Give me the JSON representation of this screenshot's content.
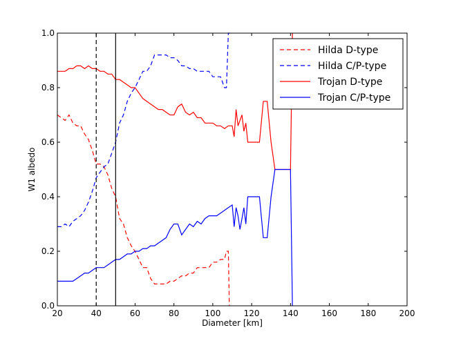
{
  "chart_data": {
    "type": "line",
    "title": "",
    "xlabel": "Diameter [km]",
    "ylabel": "W1 albedo",
    "xlim": [
      20,
      200
    ],
    "ylim": [
      0.0,
      1.0
    ],
    "xticks": [
      "20",
      "40",
      "60",
      "80",
      "100",
      "120",
      "140",
      "160",
      "180",
      "200"
    ],
    "yticks": [
      "0.0",
      "0.2",
      "0.4",
      "0.6",
      "0.8",
      "1.0"
    ],
    "grid": false,
    "legend_position": "upper right",
    "vertical_lines": [
      {
        "x": 40,
        "style": "dashed",
        "color": "#000000"
      },
      {
        "x": 50,
        "style": "solid",
        "color": "#000000"
      }
    ],
    "series": [
      {
        "name": "Hilda D-type",
        "color": "#ff0000",
        "style": "dashed",
        "x": [
          20,
          22,
          24,
          26,
          28,
          30,
          32,
          34,
          36,
          38,
          40,
          42,
          44,
          46,
          48,
          50,
          52,
          54,
          56,
          58,
          60,
          62,
          64,
          66,
          68,
          70,
          72,
          74,
          76,
          78,
          80,
          82,
          84,
          86,
          88,
          90,
          92,
          94,
          96,
          98,
          100,
          102,
          104,
          106,
          107,
          108,
          108.5
        ],
        "values": [
          0.7,
          0.69,
          0.68,
          0.7,
          0.67,
          0.66,
          0.66,
          0.63,
          0.61,
          0.57,
          0.52,
          0.52,
          0.51,
          0.48,
          0.43,
          0.4,
          0.32,
          0.3,
          0.25,
          0.22,
          0.2,
          0.17,
          0.14,
          0.14,
          0.1,
          0.08,
          0.08,
          0.08,
          0.08,
          0.09,
          0.09,
          0.1,
          0.11,
          0.11,
          0.12,
          0.12,
          0.14,
          0.14,
          0.14,
          0.14,
          0.16,
          0.16,
          0.17,
          0.17,
          0.2,
          0.2,
          0.0
        ]
      },
      {
        "name": "Hilda C/P-type",
        "color": "#0000ff",
        "style": "dashed",
        "x": [
          20,
          22,
          24,
          26,
          28,
          30,
          32,
          34,
          36,
          38,
          40,
          42,
          44,
          46,
          48,
          50,
          52,
          54,
          56,
          58,
          60,
          62,
          64,
          66,
          68,
          70,
          72,
          74,
          76,
          78,
          80,
          82,
          84,
          86,
          88,
          90,
          92,
          94,
          96,
          98,
          100,
          102,
          104,
          106,
          107,
          108,
          109
        ],
        "values": [
          0.29,
          0.29,
          0.3,
          0.29,
          0.31,
          0.32,
          0.33,
          0.35,
          0.38,
          0.42,
          0.47,
          0.49,
          0.51,
          0.52,
          0.56,
          0.6,
          0.67,
          0.7,
          0.75,
          0.78,
          0.8,
          0.83,
          0.86,
          0.86,
          0.88,
          0.92,
          0.92,
          0.92,
          0.92,
          0.91,
          0.91,
          0.9,
          0.88,
          0.88,
          0.87,
          0.87,
          0.86,
          0.86,
          0.86,
          0.86,
          0.84,
          0.84,
          0.84,
          0.8,
          0.8,
          1.0,
          1.0
        ]
      },
      {
        "name": "Trojan D-type",
        "color": "#ff0000",
        "style": "solid",
        "x": [
          20,
          22,
          24,
          26,
          28,
          30,
          32,
          34,
          36,
          38,
          40,
          42,
          44,
          46,
          48,
          50,
          52,
          54,
          56,
          58,
          60,
          62,
          64,
          66,
          68,
          70,
          72,
          74,
          76,
          78,
          80,
          82,
          84,
          86,
          88,
          90,
          92,
          94,
          96,
          98,
          100,
          102,
          104,
          106,
          108,
          110,
          111,
          112,
          113,
          114,
          115,
          116,
          117,
          118,
          120,
          122,
          124,
          126,
          128,
          130,
          132,
          134,
          136,
          138,
          140,
          141
        ],
        "values": [
          0.86,
          0.86,
          0.86,
          0.87,
          0.87,
          0.88,
          0.88,
          0.87,
          0.88,
          0.87,
          0.87,
          0.86,
          0.86,
          0.85,
          0.85,
          0.83,
          0.83,
          0.82,
          0.81,
          0.8,
          0.8,
          0.78,
          0.76,
          0.75,
          0.74,
          0.73,
          0.72,
          0.72,
          0.71,
          0.7,
          0.7,
          0.73,
          0.74,
          0.71,
          0.7,
          0.71,
          0.69,
          0.69,
          0.67,
          0.67,
          0.67,
          0.66,
          0.66,
          0.65,
          0.66,
          0.66,
          0.62,
          0.72,
          0.66,
          0.68,
          0.7,
          0.64,
          0.67,
          0.6,
          0.6,
          0.6,
          0.6,
          0.75,
          0.75,
          0.6,
          0.5,
          0.5,
          0.5,
          0.5,
          0.5,
          1.0
        ]
      },
      {
        "name": "Trojan C/P-type",
        "color": "#0000ff",
        "style": "solid",
        "x": [
          20,
          22,
          24,
          26,
          28,
          30,
          32,
          34,
          36,
          38,
          40,
          42,
          44,
          46,
          48,
          50,
          52,
          54,
          56,
          58,
          60,
          62,
          64,
          66,
          68,
          70,
          72,
          74,
          76,
          78,
          80,
          82,
          84,
          86,
          88,
          90,
          92,
          94,
          96,
          98,
          100,
          102,
          104,
          106,
          108,
          110,
          111,
          112,
          113,
          114,
          115,
          116,
          117,
          118,
          120,
          122,
          124,
          126,
          128,
          130,
          132,
          134,
          136,
          138,
          140,
          141
        ],
        "values": [
          0.09,
          0.09,
          0.09,
          0.09,
          0.09,
          0.1,
          0.11,
          0.12,
          0.12,
          0.13,
          0.14,
          0.14,
          0.14,
          0.15,
          0.16,
          0.17,
          0.17,
          0.18,
          0.19,
          0.19,
          0.2,
          0.2,
          0.21,
          0.21,
          0.22,
          0.22,
          0.23,
          0.24,
          0.25,
          0.28,
          0.3,
          0.3,
          0.26,
          0.28,
          0.3,
          0.29,
          0.31,
          0.3,
          0.32,
          0.33,
          0.33,
          0.33,
          0.34,
          0.35,
          0.36,
          0.37,
          0.29,
          0.36,
          0.33,
          0.28,
          0.32,
          0.36,
          0.3,
          0.4,
          0.4,
          0.4,
          0.4,
          0.25,
          0.25,
          0.4,
          0.5,
          0.5,
          0.5,
          0.5,
          0.5,
          0.0
        ]
      }
    ]
  }
}
